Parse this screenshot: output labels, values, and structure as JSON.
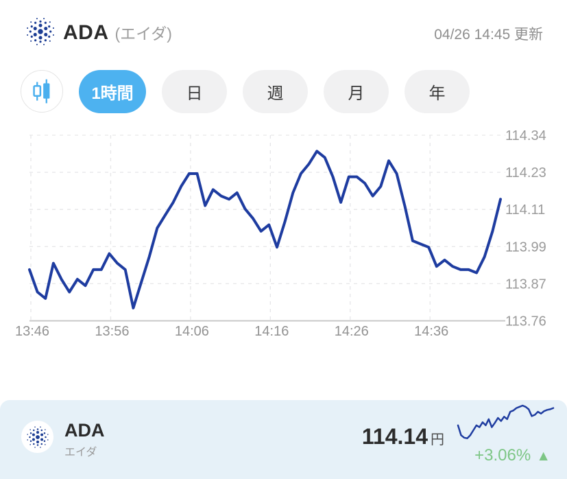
{
  "header": {
    "symbol": "ADA",
    "name_paren": "(エイダ)",
    "updated": "04/26 14:45 更新"
  },
  "toolbar": {
    "chart_type_icon": "candlestick-icon",
    "tabs": [
      {
        "label": "1時間",
        "active": true
      },
      {
        "label": "日",
        "active": false
      },
      {
        "label": "週",
        "active": false
      },
      {
        "label": "月",
        "active": false
      },
      {
        "label": "年",
        "active": false
      }
    ]
  },
  "chart_data": {
    "type": "line",
    "series_name": "ADA price (JPY), 1-hour view, 1-minute interval",
    "x_ticks": [
      "13:46",
      "13:56",
      "14:06",
      "14:16",
      "14:26",
      "14:36"
    ],
    "x_tick_indices": [
      0,
      10,
      20,
      30,
      40,
      50
    ],
    "y_ticks": [
      "114.34",
      "114.23",
      "114.11",
      "113.99",
      "113.87",
      "113.76"
    ],
    "ylim": [
      113.76,
      114.34
    ],
    "grid": "dashed",
    "legend": "none",
    "line_color": "#1e3ca0",
    "values": [
      113.92,
      113.85,
      113.83,
      113.94,
      113.89,
      113.85,
      113.89,
      113.87,
      113.92,
      113.92,
      113.97,
      113.94,
      113.92,
      113.8,
      113.88,
      113.96,
      114.05,
      114.09,
      114.13,
      114.18,
      114.22,
      114.22,
      114.12,
      114.17,
      114.15,
      114.14,
      114.16,
      114.11,
      114.08,
      114.04,
      114.06,
      113.99,
      114.07,
      114.16,
      114.22,
      114.25,
      114.29,
      114.27,
      114.21,
      114.13,
      114.21,
      114.21,
      114.19,
      114.15,
      114.18,
      114.26,
      114.22,
      114.12,
      114.01,
      114.0,
      113.99,
      113.93,
      113.95,
      113.93,
      113.92,
      113.92,
      113.91,
      113.96,
      114.04,
      114.14
    ]
  },
  "card": {
    "symbol": "ADA",
    "name": "エイダ",
    "price": "114.14",
    "currency": "円",
    "change": "+3.06%",
    "arrow": "▲",
    "direction": "up",
    "spark_color": "#1e3ca0",
    "sparkline": [
      28,
      12,
      8,
      7,
      12,
      20,
      28,
      25,
      33,
      28,
      38,
      25,
      32,
      40,
      35,
      42,
      38,
      50,
      52,
      56,
      58,
      60,
      58,
      54,
      43,
      45,
      50,
      47,
      51,
      53,
      54,
      56
    ]
  },
  "colors": {
    "accent_blue": "#4db2f0",
    "line_blue": "#1e3ca0",
    "logo_navy": "#1d3e94",
    "positive_green": "#7dc685",
    "card_bg": "#e6f1f8"
  }
}
